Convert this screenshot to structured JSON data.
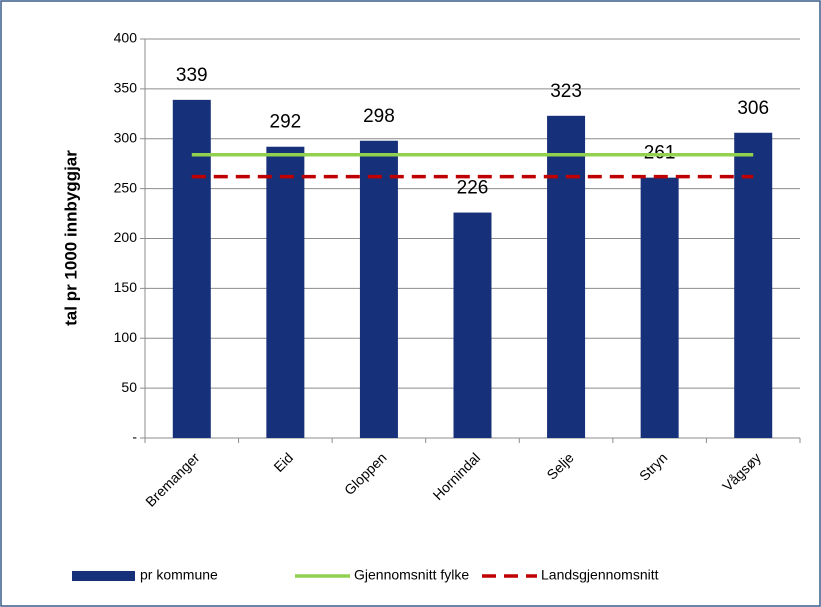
{
  "chart_data": {
    "type": "bar",
    "y_label": "tal pr 1000 innbyggjar",
    "categories": [
      "Bremanger",
      "Eid",
      "Gloppen",
      "Hornindal",
      "Selje",
      "Stryn",
      "Vågsøy"
    ],
    "series": [
      {
        "name": "pr kommune",
        "type": "bar",
        "color": "#17307a",
        "values": [
          339,
          292,
          298,
          226,
          323,
          261,
          306
        ]
      },
      {
        "name": "Gjennomsnitt fylke",
        "type": "line",
        "color": "#92d050",
        "dashed": false,
        "values": [
          284,
          284,
          284,
          284,
          284,
          284,
          284
        ]
      },
      {
        "name": "Landsgjennomsnitt",
        "type": "line",
        "color": "#c00000",
        "dashed": true,
        "values": [
          262,
          262,
          262,
          262,
          262,
          262,
          262
        ]
      }
    ],
    "ylim": [
      0,
      400
    ],
    "yticks": [
      {
        "value": 0,
        "label": "-"
      },
      50,
      100,
      150,
      200,
      250,
      300,
      350,
      400
    ],
    "grid": true
  }
}
